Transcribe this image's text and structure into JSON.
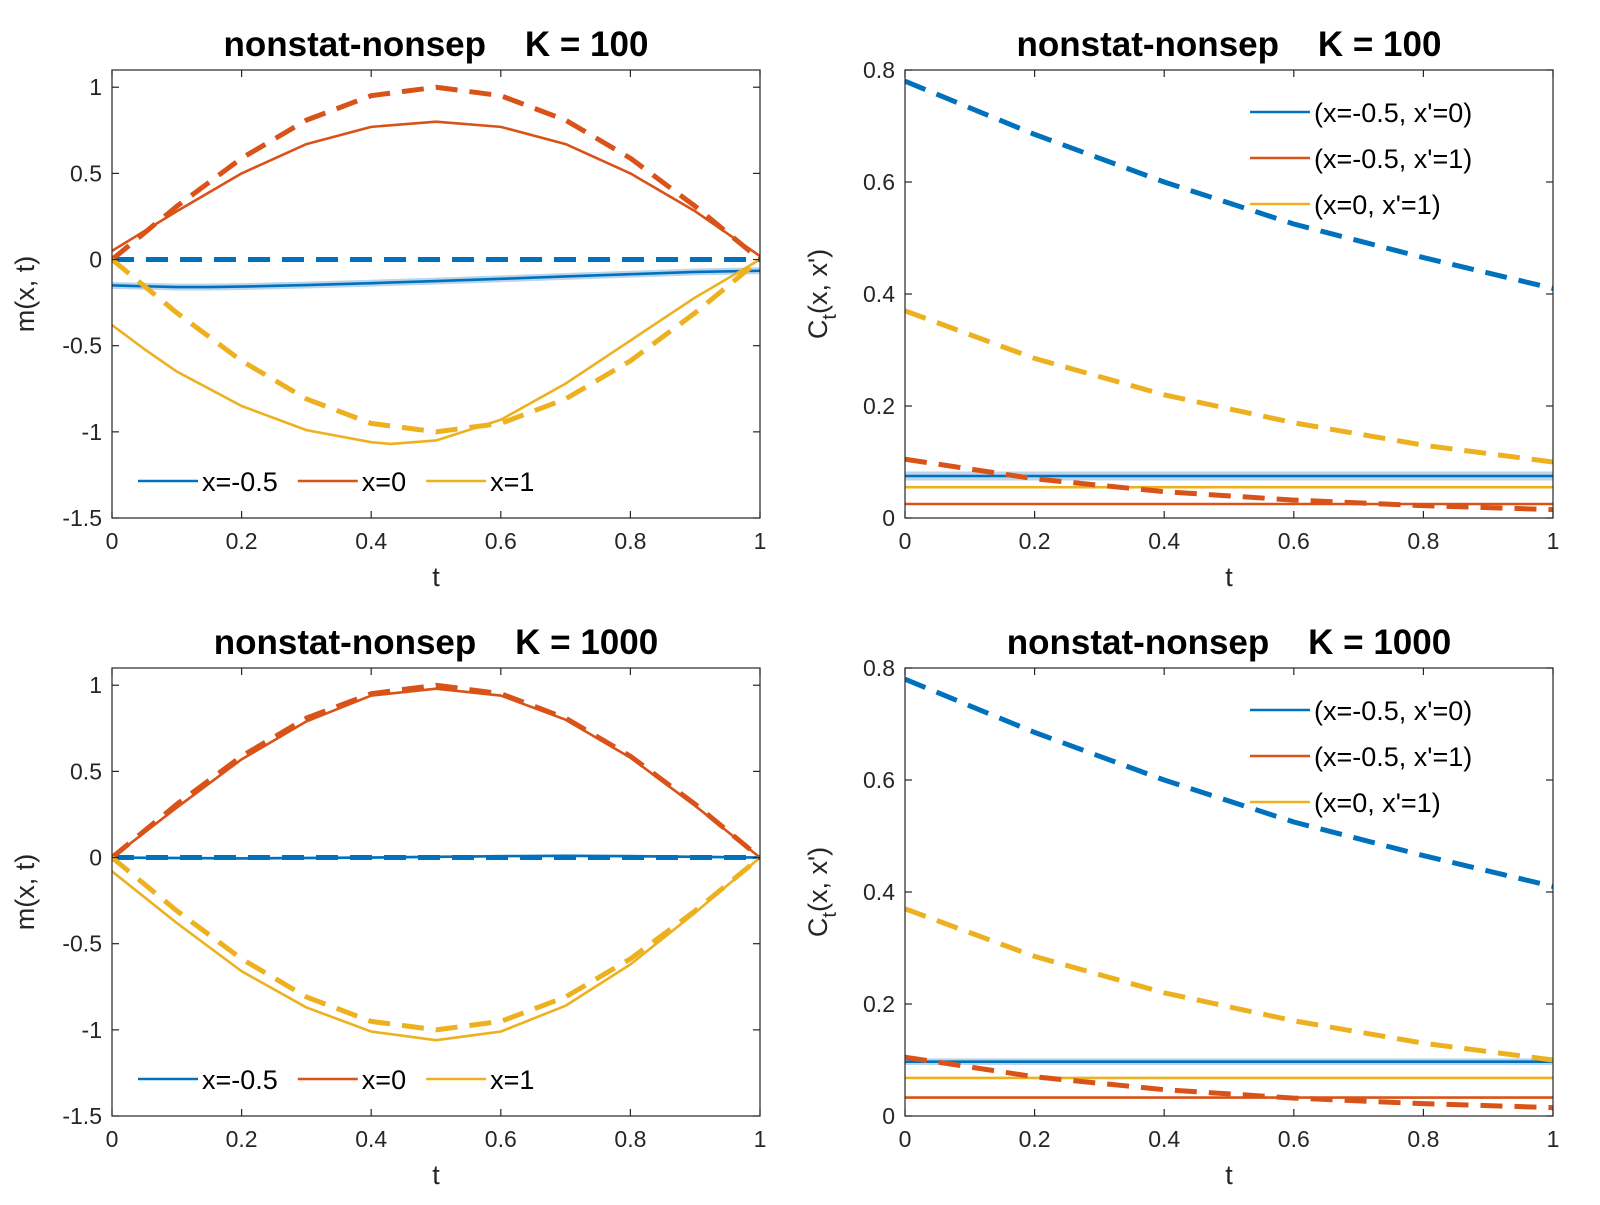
{
  "figure": {
    "background": "#ffffff"
  },
  "colors": {
    "blue": "#0072BD",
    "orange": "#D95319",
    "yellow": "#EDB120",
    "band": "#9DC3E6",
    "axis": "#262626"
  },
  "chart_data": [
    {
      "id": "m100",
      "type": "line",
      "title": "nonstat-nonsep    K = 100",
      "xlabel": "t",
      "ylabel": "m(x, t)",
      "xlim": [
        0,
        1
      ],
      "ylim": [
        -1.5,
        1.1
      ],
      "xticks": [
        0,
        0.2,
        0.4,
        0.6,
        0.8,
        1
      ],
      "yticks": [
        -1.5,
        -1,
        -0.5,
        0,
        0.5,
        1
      ],
      "legend": {
        "placement": "bottom-left",
        "orientation": "horizontal"
      },
      "series": [
        {
          "name": "x=-0.5",
          "color": "blue",
          "style": "solid",
          "band": 0.02,
          "x": [
            0,
            0.05,
            0.1,
            0.15,
            0.2,
            0.3,
            0.4,
            0.5,
            0.6,
            0.7,
            0.8,
            0.9,
            1
          ],
          "y": [
            -0.15,
            -0.155,
            -0.16,
            -0.16,
            -0.157,
            -0.148,
            -0.137,
            -0.125,
            -0.112,
            -0.098,
            -0.085,
            -0.072,
            -0.065
          ]
        },
        {
          "name": "x=0",
          "color": "orange",
          "style": "solid",
          "x": [
            0,
            0.1,
            0.2,
            0.3,
            0.4,
            0.5,
            0.6,
            0.7,
            0.8,
            0.9,
            1
          ],
          "y": [
            0.05,
            0.28,
            0.5,
            0.67,
            0.77,
            0.8,
            0.77,
            0.67,
            0.5,
            0.28,
            0.02
          ]
        },
        {
          "name": "x=1",
          "color": "yellow",
          "style": "solid",
          "x": [
            0,
            0.05,
            0.1,
            0.2,
            0.3,
            0.4,
            0.43,
            0.5,
            0.6,
            0.7,
            0.8,
            0.9,
            1
          ],
          "y": [
            -0.38,
            -0.52,
            -0.65,
            -0.85,
            -0.99,
            -1.06,
            -1.07,
            -1.05,
            -0.93,
            -0.72,
            -0.47,
            -0.22,
            0
          ]
        },
        {
          "name": "",
          "color": "blue",
          "style": "dashed",
          "x": [
            0,
            1
          ],
          "y": [
            0,
            0
          ]
        },
        {
          "name": "",
          "color": "orange",
          "style": "dashed",
          "x": [
            0,
            0.1,
            0.2,
            0.3,
            0.4,
            0.5,
            0.6,
            0.7,
            0.8,
            0.9,
            1
          ],
          "y": [
            0,
            0.309,
            0.588,
            0.809,
            0.951,
            1,
            0.951,
            0.809,
            0.588,
            0.309,
            0
          ]
        },
        {
          "name": "",
          "color": "yellow",
          "style": "dashed",
          "x": [
            0,
            0.1,
            0.2,
            0.3,
            0.4,
            0.5,
            0.6,
            0.7,
            0.8,
            0.9,
            1
          ],
          "y": [
            0,
            -0.309,
            -0.588,
            -0.809,
            -0.951,
            -1,
            -0.951,
            -0.809,
            -0.588,
            -0.309,
            0
          ]
        }
      ]
    },
    {
      "id": "c100",
      "type": "line",
      "title": "nonstat-nonsep    K = 100",
      "xlabel": "t",
      "ylabel": "C_t(x, x')",
      "xlim": [
        0,
        1
      ],
      "ylim": [
        0,
        0.8
      ],
      "xticks": [
        0,
        0.2,
        0.4,
        0.6,
        0.8,
        1
      ],
      "yticks": [
        0,
        0.2,
        0.4,
        0.6,
        0.8
      ],
      "legend": {
        "placement": "top-right",
        "orientation": "vertical"
      },
      "series": [
        {
          "name": "(x=-0.5, x'=0)",
          "color": "blue",
          "style": "solid",
          "band": 0.008,
          "x": [
            0,
            1
          ],
          "y": [
            0.075,
            0.075
          ]
        },
        {
          "name": "(x=-0.5, x'=1)",
          "color": "orange",
          "style": "solid",
          "x": [
            0,
            1
          ],
          "y": [
            0.025,
            0.025
          ]
        },
        {
          "name": "(x=0, x'=1)",
          "color": "yellow",
          "style": "solid",
          "x": [
            0,
            1
          ],
          "y": [
            0.055,
            0.055
          ]
        },
        {
          "name": "",
          "color": "blue",
          "style": "dashed",
          "x": [
            0,
            0.2,
            0.4,
            0.6,
            0.8,
            1
          ],
          "y": [
            0.78,
            0.685,
            0.6,
            0.525,
            0.465,
            0.41
          ]
        },
        {
          "name": "",
          "color": "yellow",
          "style": "dashed",
          "x": [
            0,
            0.2,
            0.4,
            0.6,
            0.8,
            1
          ],
          "y": [
            0.37,
            0.285,
            0.22,
            0.17,
            0.13,
            0.1
          ]
        },
        {
          "name": "",
          "color": "orange",
          "style": "dashed",
          "x": [
            0,
            0.2,
            0.4,
            0.6,
            0.8,
            1
          ],
          "y": [
            0.105,
            0.07,
            0.047,
            0.032,
            0.022,
            0.015
          ]
        }
      ]
    },
    {
      "id": "m1000",
      "type": "line",
      "title": "nonstat-nonsep    K = 1000",
      "xlabel": "t",
      "ylabel": "m(x, t)",
      "xlim": [
        0,
        1
      ],
      "ylim": [
        -1.5,
        1.1
      ],
      "xticks": [
        0,
        0.2,
        0.4,
        0.6,
        0.8,
        1
      ],
      "yticks": [
        -1.5,
        -1,
        -0.5,
        0,
        0.5,
        1
      ],
      "legend": {
        "placement": "bottom-left",
        "orientation": "horizontal"
      },
      "series": [
        {
          "name": "x=-0.5",
          "color": "blue",
          "style": "solid",
          "band": 0.008,
          "x": [
            0,
            0.2,
            0.4,
            0.5,
            0.6,
            0.7,
            0.8,
            0.9,
            1
          ],
          "y": [
            0,
            -0.005,
            0,
            0.004,
            0.008,
            0.01,
            0.008,
            0.004,
            0
          ]
        },
        {
          "name": "x=0",
          "color": "orange",
          "style": "solid",
          "x": [
            0,
            0.1,
            0.2,
            0.3,
            0.4,
            0.5,
            0.6,
            0.7,
            0.8,
            0.9,
            1
          ],
          "y": [
            0,
            0.29,
            0.57,
            0.79,
            0.94,
            0.98,
            0.94,
            0.8,
            0.58,
            0.3,
            0
          ]
        },
        {
          "name": "x=1",
          "color": "yellow",
          "style": "solid",
          "x": [
            0,
            0.1,
            0.2,
            0.3,
            0.4,
            0.5,
            0.6,
            0.7,
            0.8,
            0.9,
            1
          ],
          "y": [
            -0.08,
            -0.38,
            -0.66,
            -0.87,
            -1.01,
            -1.06,
            -1.01,
            -0.86,
            -0.62,
            -0.32,
            0
          ]
        },
        {
          "name": "",
          "color": "blue",
          "style": "dashed",
          "x": [
            0,
            1
          ],
          "y": [
            0,
            0
          ]
        },
        {
          "name": "",
          "color": "orange",
          "style": "dashed",
          "x": [
            0,
            0.1,
            0.2,
            0.3,
            0.4,
            0.5,
            0.6,
            0.7,
            0.8,
            0.9,
            1
          ],
          "y": [
            0,
            0.309,
            0.588,
            0.809,
            0.951,
            1,
            0.951,
            0.809,
            0.588,
            0.309,
            0
          ]
        },
        {
          "name": "",
          "color": "yellow",
          "style": "dashed",
          "x": [
            0,
            0.1,
            0.2,
            0.3,
            0.4,
            0.5,
            0.6,
            0.7,
            0.8,
            0.9,
            1
          ],
          "y": [
            0,
            -0.309,
            -0.588,
            -0.809,
            -0.951,
            -1,
            -0.951,
            -0.809,
            -0.588,
            -0.309,
            0
          ]
        }
      ]
    },
    {
      "id": "c1000",
      "type": "line",
      "title": "nonstat-nonsep    K = 1000",
      "xlabel": "t",
      "ylabel": "C_t(x, x')",
      "xlim": [
        0,
        1
      ],
      "ylim": [
        0,
        0.8
      ],
      "xticks": [
        0,
        0.2,
        0.4,
        0.6,
        0.8,
        1
      ],
      "yticks": [
        0,
        0.2,
        0.4,
        0.6,
        0.8
      ],
      "legend": {
        "placement": "top-right",
        "orientation": "vertical"
      },
      "series": [
        {
          "name": "(x=-0.5, x'=0)",
          "color": "blue",
          "style": "solid",
          "band": 0.006,
          "x": [
            0,
            1
          ],
          "y": [
            0.097,
            0.097
          ]
        },
        {
          "name": "(x=-0.5, x'=1)",
          "color": "orange",
          "style": "solid",
          "x": [
            0,
            1
          ],
          "y": [
            0.033,
            0.033
          ]
        },
        {
          "name": "(x=0, x'=1)",
          "color": "yellow",
          "style": "solid",
          "x": [
            0,
            1
          ],
          "y": [
            0.068,
            0.068
          ]
        },
        {
          "name": "",
          "color": "blue",
          "style": "dashed",
          "x": [
            0,
            0.2,
            0.4,
            0.6,
            0.8,
            1
          ],
          "y": [
            0.78,
            0.685,
            0.6,
            0.525,
            0.465,
            0.41
          ]
        },
        {
          "name": "",
          "color": "yellow",
          "style": "dashed",
          "x": [
            0,
            0.2,
            0.4,
            0.6,
            0.8,
            1
          ],
          "y": [
            0.37,
            0.285,
            0.22,
            0.17,
            0.13,
            0.1
          ]
        },
        {
          "name": "",
          "color": "orange",
          "style": "dashed",
          "x": [
            0,
            0.2,
            0.4,
            0.6,
            0.8,
            1
          ],
          "y": [
            0.105,
            0.07,
            0.047,
            0.032,
            0.022,
            0.015
          ]
        }
      ]
    }
  ]
}
